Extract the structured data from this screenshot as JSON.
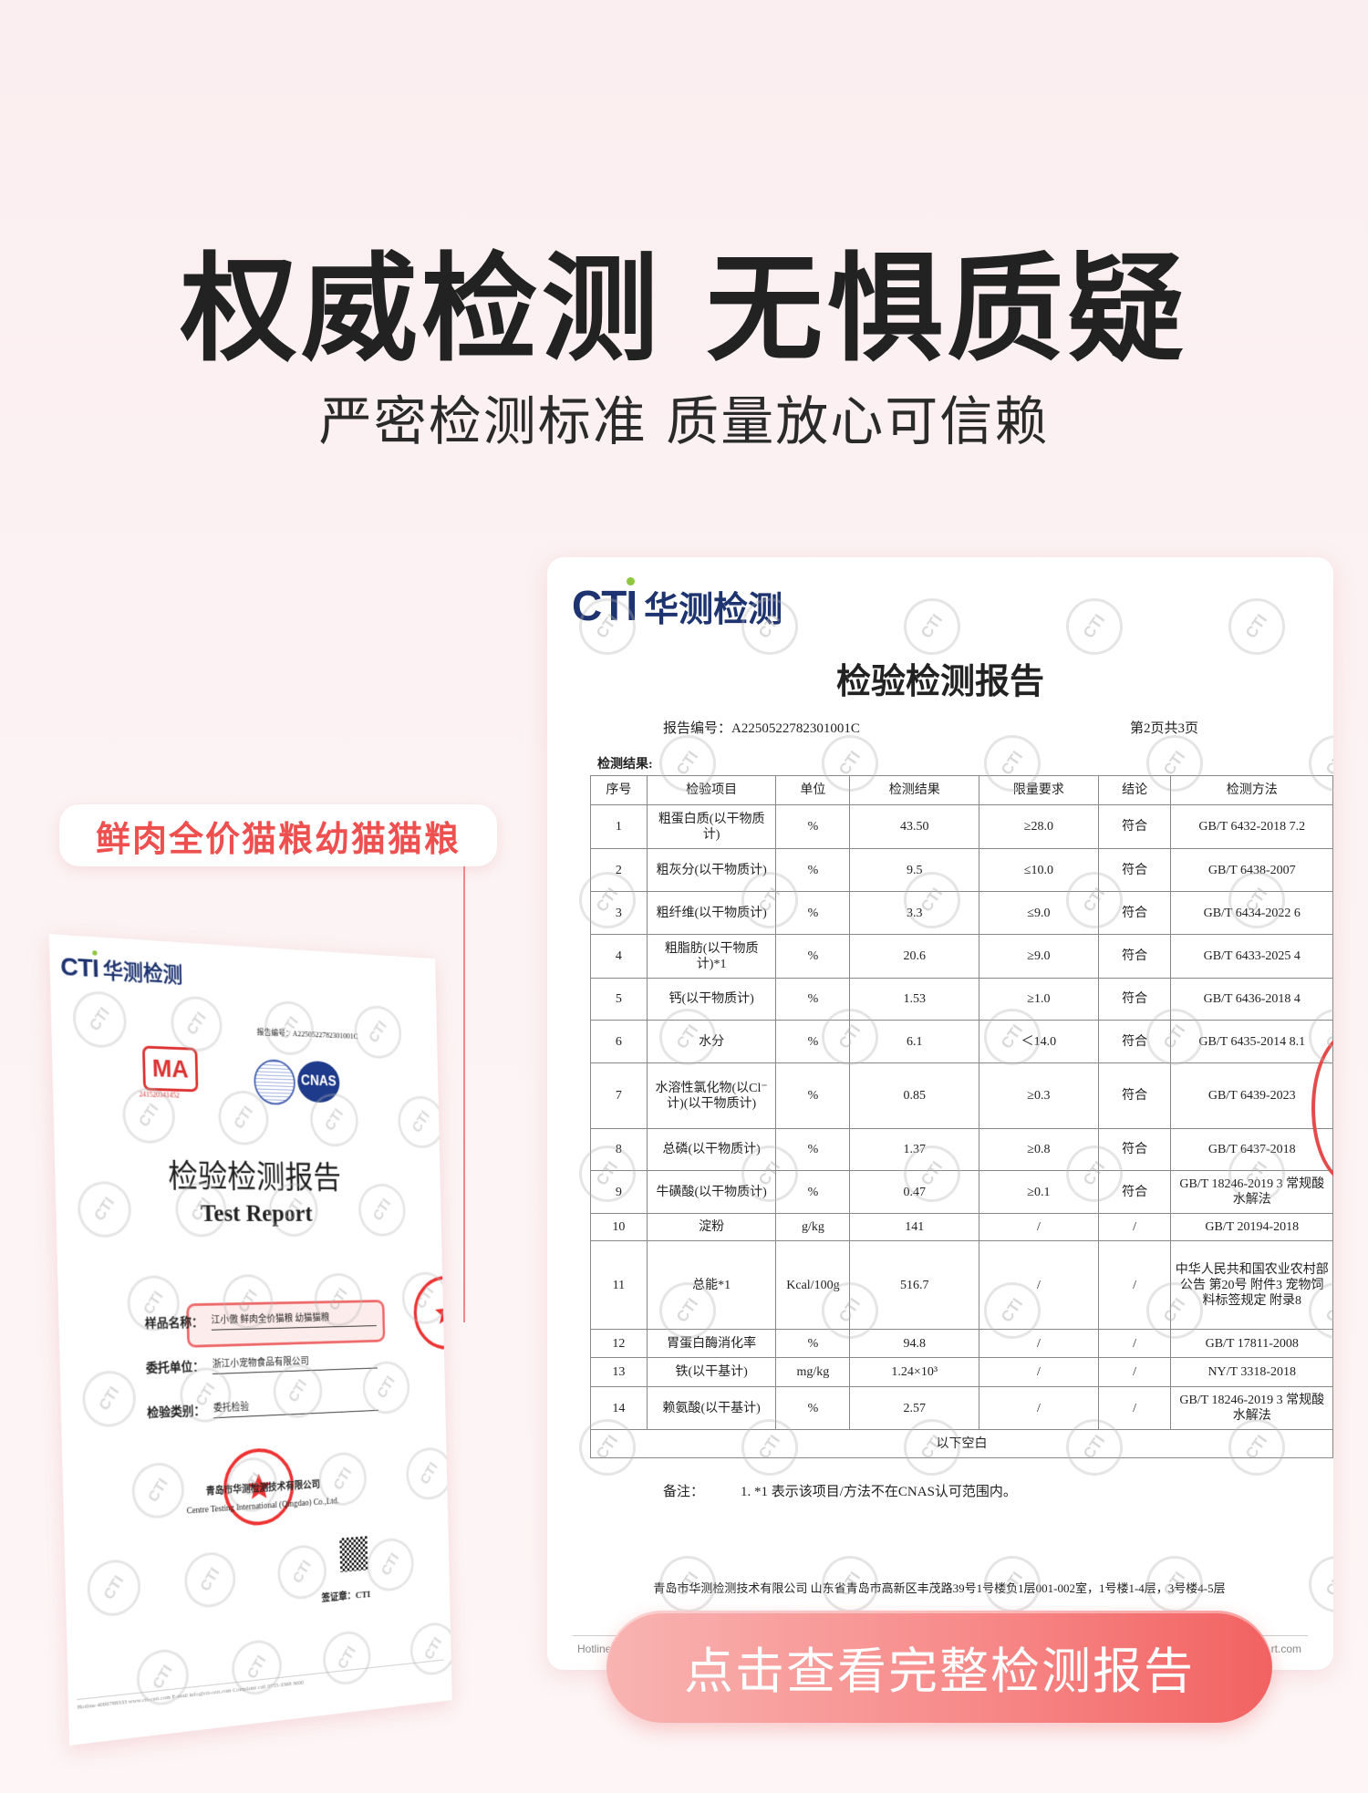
{
  "headline": "权威检测 无惧质疑",
  "subline": "严密检测标准 质量放心可信赖",
  "product_tag": "鲜肉全价猫粮幼猫猫粮",
  "cta_button": "点击查看完整检测报告",
  "colors": {
    "accent": "#ee4f4f",
    "button_start": "#f8b4b2",
    "button_end": "#f26262",
    "logo_blue": "#1e3470",
    "logo_dot": "#8dc63f"
  },
  "logo": {
    "mark": "CTI",
    "name": "华测检测"
  },
  "watermark_text": "CTI",
  "report_page": {
    "title": "检验检测报告",
    "report_no": "报告编号：A2250522782301001C",
    "page": "第2页共3页",
    "section_label": "检测结果:",
    "columns": [
      "序号",
      "检验项目",
      "单位",
      "检测结果",
      "限量要求",
      "结论",
      "检测方法"
    ],
    "rows": [
      [
        "1",
        "粗蛋白质(以干物质计)",
        "%",
        "43.50",
        "≥28.0",
        "符合",
        "GB/T 6432-2018 7.2"
      ],
      [
        "2",
        "粗灰分(以干物质计)",
        "%",
        "9.5",
        "≤10.0",
        "符合",
        "GB/T 6438-2007"
      ],
      [
        "3",
        "粗纤维(以干物质计)",
        "%",
        "3.3",
        "≤9.0",
        "符合",
        "GB/T 6434-2022 6"
      ],
      [
        "4",
        "粗脂肪(以干物质计)*1",
        "%",
        "20.6",
        "≥9.0",
        "符合",
        "GB/T 6433-2025 4"
      ],
      [
        "5",
        "钙(以干物质计)",
        "%",
        "1.53",
        "≥1.0",
        "符合",
        "GB/T 6436-2018 4"
      ],
      [
        "6",
        "水分",
        "%",
        "6.1",
        "＜14.0",
        "符合",
        "GB/T 6435-2014 8.1"
      ],
      [
        "7",
        "水溶性氯化物(以Cl⁻计)(以干物质计)",
        "%",
        "0.85",
        "≥0.3",
        "符合",
        "GB/T 6439-2023"
      ],
      [
        "8",
        "总磷(以干物质计)",
        "%",
        "1.37",
        "≥0.8",
        "符合",
        "GB/T 6437-2018"
      ],
      [
        "9",
        "牛磺酸(以干物质计)",
        "%",
        "0.47",
        "≥0.1",
        "符合",
        "GB/T 18246-2019 3 常规酸水解法"
      ],
      [
        "10",
        "淀粉",
        "g/kg",
        "141",
        "/",
        "/",
        "GB/T 20194-2018"
      ],
      [
        "11",
        "总能*1",
        "Kcal/100g",
        "516.7",
        "/",
        "/",
        "中华人民共和国农业农村部公告 第20号 附件3 宠物饲料标签规定 附录8"
      ],
      [
        "12",
        "胃蛋白酶消化率",
        "%",
        "94.8",
        "/",
        "/",
        "GB/T 17811-2008"
      ],
      [
        "13",
        "铁(以干基计)",
        "mg/kg",
        "1.24×10³",
        "/",
        "/",
        "NY/T 3318-2018"
      ],
      [
        "14",
        "赖氨酸(以干基计)",
        "%",
        "2.57",
        "/",
        "/",
        "GB/T 18246-2019 3 常规酸水解法"
      ]
    ],
    "blank_row": "以下空白",
    "note_label": "备注：",
    "note": "1. *1 表示该项目/方法不在CNAS认可范围内。",
    "address": "青岛市华测检测技术有限公司 山东省青岛市高新区丰茂路39号1号楼负1层001-002室，1号楼1-4层，3号楼4-5层",
    "hotline": "Hotline",
    "website": "rt.com"
  },
  "cover_page": {
    "report_no": "报告编号：A2250522782301001C",
    "cma": "MA",
    "cma_no": "241520341452",
    "cnas": "CNAS",
    "title": "检验检测报告",
    "title_en": "Test Report",
    "fields": [
      {
        "label": "样品名称：",
        "value": "江小傲 鲜肉全价猫粮 幼猫猫粮"
      },
      {
        "label": "委托单位：",
        "value": "浙江小宠物食品有限公司"
      },
      {
        "label": "检验类别：",
        "value": "委托检验"
      }
    ],
    "company_cn": "青岛市华测检测技术有限公司",
    "company_en": "Centre Testing International (Qingdao) Co.,Ltd.",
    "signature": "签证章：CTI",
    "footer": "Hotline 4006788333    www.cti-cert.com    E-mail info@cti-cert.com    Complaint call 0755-3368 3600"
  }
}
